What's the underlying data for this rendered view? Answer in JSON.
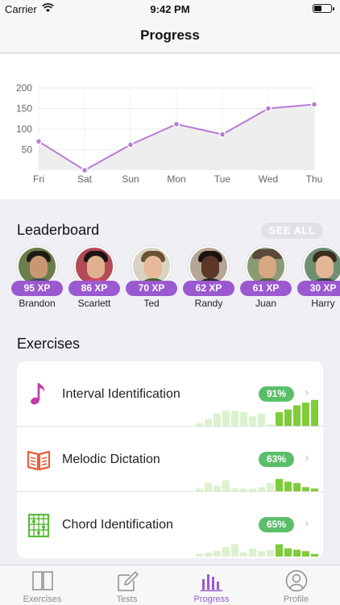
{
  "status_bar": {
    "carrier": "Carrier",
    "time": "9:42 PM"
  },
  "nav": {
    "title": "Progress"
  },
  "chart_data": {
    "type": "line",
    "categories": [
      "Fri",
      "Sat",
      "Sun",
      "Mon",
      "Tue",
      "Wed",
      "Thu"
    ],
    "values": [
      70,
      0,
      62,
      112,
      87,
      150,
      160
    ],
    "yticks": [
      50,
      100,
      150,
      200
    ],
    "ylim": [
      0,
      200
    ],
    "grid": true,
    "color": "#b77cd6"
  },
  "leaderboard": {
    "title": "Leaderboard",
    "see_all": "SEE ALL",
    "leaders": [
      {
        "name": "Brandon",
        "xp": "95 XP"
      },
      {
        "name": "Scarlett",
        "xp": "86 XP"
      },
      {
        "name": "Ted",
        "xp": "70 XP"
      },
      {
        "name": "Randy",
        "xp": "62 XP"
      },
      {
        "name": "Juan",
        "xp": "61 XP"
      },
      {
        "name": "Harry",
        "xp": "30 XP"
      }
    ]
  },
  "exercises": {
    "title": "Exercises",
    "items": [
      {
        "label": "Interval Identification",
        "percent": "91%",
        "icon": "music-note-icon",
        "accent": "#c23ba8",
        "history": [
          0.1,
          0.25,
          0.45,
          0.55,
          0.55,
          0.5,
          0.35,
          0.45,
          0,
          0.5,
          0.6,
          0.75,
          0.85,
          0.95
        ]
      },
      {
        "label": "Melodic Dictation",
        "percent": "63%",
        "icon": "open-book-icon",
        "accent": "#e8603c",
        "history": [
          0.1,
          0.3,
          0.2,
          0.4,
          0.1,
          0.1,
          0.1,
          0.15,
          0.3,
          0.45,
          0.35,
          0.3,
          0.15,
          0.1
        ]
      },
      {
        "label": "Chord Identification",
        "percent": "65%",
        "icon": "guitar-chord-icon",
        "accent": "#5dbb3c",
        "history": [
          0.1,
          0.15,
          0.2,
          0.35,
          0.45,
          0.15,
          0.3,
          0.2,
          0.25,
          0.45,
          0.3,
          0.25,
          0.2,
          0.1
        ]
      }
    ]
  },
  "tabs": [
    {
      "label": "Exercises",
      "icon": "book-icon"
    },
    {
      "label": "Tests",
      "icon": "pencil-note-icon"
    },
    {
      "label": "Progress",
      "icon": "bar-chart-icon"
    },
    {
      "label": "Profile",
      "icon": "user-circle-icon"
    }
  ],
  "colors": {
    "accent": "#9b59d0",
    "success": "#5bbf6a",
    "bar_green": "#7fcc3a"
  }
}
